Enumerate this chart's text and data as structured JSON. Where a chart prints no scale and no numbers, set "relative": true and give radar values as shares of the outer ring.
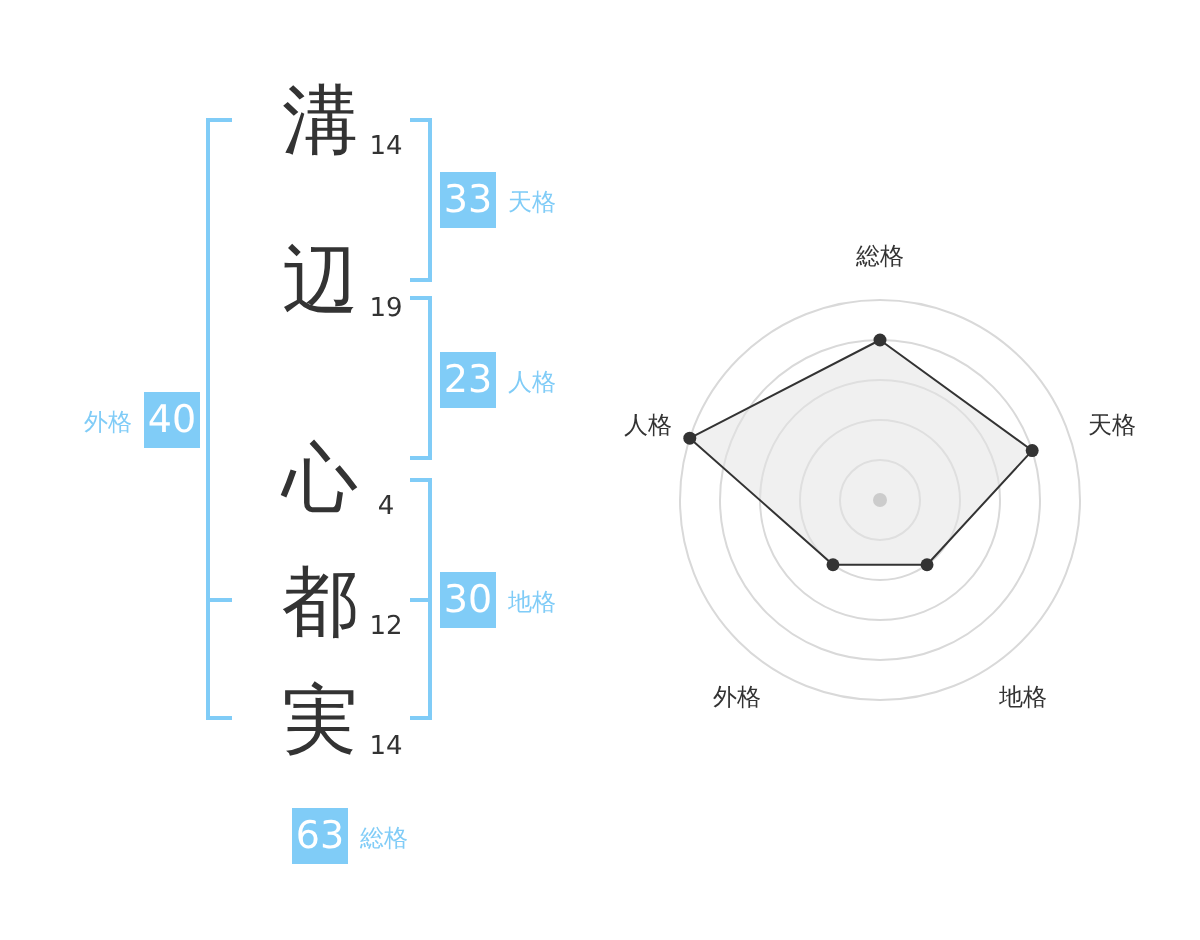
{
  "chart_data": [
    {
      "type": "other",
      "categories": [
        "溝",
        "辺",
        "心",
        "都",
        "実"
      ],
      "values": [
        14,
        19,
        4,
        12,
        14
      ],
      "data_labels": true
    },
    {
      "type": "other",
      "categories": [
        "天格",
        "人格",
        "地格",
        "外格",
        "総格"
      ],
      "values": [
        33,
        23,
        30,
        40,
        63
      ],
      "data_labels": true,
      "color": "#80ccf7"
    },
    {
      "type": "radar",
      "categories": [
        "総格",
        "天格",
        "地格",
        "外格",
        "人格"
      ],
      "relative": true,
      "series": [
        {
          "color": "#333333",
          "values": [
            0.8,
            0.8,
            0.4,
            0.4,
            1
          ]
        }
      ],
      "marker": "circle",
      "grid": true
    }
  ]
}
